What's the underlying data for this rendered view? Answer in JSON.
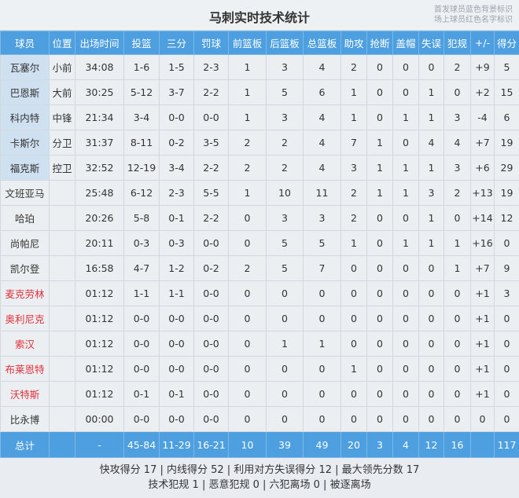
{
  "title": "马刺实时技术统计",
  "legend": [
    "首发球员蓝色背景标识",
    "场上球员红色名字标识"
  ],
  "colors": {
    "header": "#4d9fe0",
    "starter_bg": "#cfe0f0",
    "on_court_name": "#e0313b"
  },
  "headers": [
    "球员",
    "位置",
    "出场时间",
    "投篮",
    "三分",
    "罚球",
    "前篮板",
    "后篮板",
    "总篮板",
    "助攻",
    "抢断",
    "盖帽",
    "失误",
    "犯规",
    "+/-",
    "得分"
  ],
  "starters": [
    [
      "瓦塞尔",
      "小前",
      "34:08",
      "1-6",
      "1-5",
      "2-3",
      "1",
      "3",
      "4",
      "2",
      "0",
      "0",
      "0",
      "2",
      "+9",
      "5"
    ],
    [
      "巴恩斯",
      "大前",
      "30:25",
      "5-12",
      "3-7",
      "2-2",
      "1",
      "5",
      "6",
      "1",
      "0",
      "0",
      "1",
      "0",
      "+2",
      "15"
    ],
    [
      "科内特",
      "中锋",
      "21:34",
      "3-4",
      "0-0",
      "0-0",
      "1",
      "3",
      "4",
      "1",
      "0",
      "1",
      "1",
      "3",
      "-4",
      "6"
    ],
    [
      "卡斯尔",
      "分卫",
      "31:37",
      "8-11",
      "0-2",
      "3-5",
      "2",
      "2",
      "4",
      "7",
      "1",
      "0",
      "4",
      "4",
      "+7",
      "19"
    ],
    [
      "福克斯",
      "控卫",
      "32:52",
      "12-19",
      "3-4",
      "2-2",
      "2",
      "2",
      "4",
      "3",
      "1",
      "1",
      "1",
      "3",
      "+6",
      "29"
    ]
  ],
  "bench": [
    {
      "on_court": false,
      "cells": [
        "文班亚马",
        "",
        "25:48",
        "6-12",
        "2-3",
        "5-5",
        "1",
        "10",
        "11",
        "2",
        "1",
        "1",
        "3",
        "2",
        "+13",
        "19"
      ]
    },
    {
      "on_court": false,
      "cells": [
        "哈珀",
        "",
        "20:26",
        "5-8",
        "0-1",
        "2-2",
        "0",
        "3",
        "3",
        "2",
        "0",
        "0",
        "1",
        "0",
        "+14",
        "12"
      ]
    },
    {
      "on_court": false,
      "cells": [
        "尚帕尼",
        "",
        "20:11",
        "0-3",
        "0-3",
        "0-0",
        "0",
        "5",
        "5",
        "1",
        "0",
        "1",
        "1",
        "1",
        "+16",
        "0"
      ]
    },
    {
      "on_court": false,
      "cells": [
        "凯尔登",
        "",
        "16:58",
        "4-7",
        "1-2",
        "0-2",
        "2",
        "5",
        "7",
        "0",
        "0",
        "0",
        "0",
        "1",
        "+7",
        "9"
      ]
    },
    {
      "on_court": true,
      "cells": [
        "麦克劳林",
        "",
        "01:12",
        "1-1",
        "1-1",
        "0-0",
        "0",
        "0",
        "0",
        "0",
        "0",
        "0",
        "0",
        "0",
        "+1",
        "3"
      ]
    },
    {
      "on_court": true,
      "cells": [
        "奥利尼克",
        "",
        "01:12",
        "0-0",
        "0-0",
        "0-0",
        "0",
        "0",
        "0",
        "0",
        "0",
        "0",
        "0",
        "0",
        "+1",
        "0"
      ]
    },
    {
      "on_court": true,
      "cells": [
        "索汉",
        "",
        "01:12",
        "0-0",
        "0-0",
        "0-0",
        "0",
        "1",
        "1",
        "0",
        "0",
        "0",
        "0",
        "0",
        "+1",
        "0"
      ]
    },
    {
      "on_court": true,
      "cells": [
        "布莱恩特",
        "",
        "01:12",
        "0-0",
        "0-0",
        "0-0",
        "0",
        "0",
        "0",
        "1",
        "0",
        "0",
        "0",
        "0",
        "+1",
        "0"
      ]
    },
    {
      "on_court": true,
      "cells": [
        "沃特斯",
        "",
        "01:12",
        "0-1",
        "0-1",
        "0-0",
        "0",
        "0",
        "0",
        "0",
        "0",
        "0",
        "0",
        "0",
        "+1",
        "0"
      ]
    },
    {
      "on_court": false,
      "cells": [
        "比永博",
        "",
        "00:00",
        "0-0",
        "0-0",
        "0-0",
        "0",
        "0",
        "0",
        "0",
        "0",
        "0",
        "0",
        "0",
        "0",
        "0"
      ]
    }
  ],
  "total": [
    "总计",
    "",
    "-",
    "45-84",
    "11-29",
    "16-21",
    "10",
    "39",
    "49",
    "20",
    "3",
    "4",
    "12",
    "16",
    "",
    "117"
  ],
  "footer": [
    "快攻得分 17 | 内线得分 52 | 利用对方失误得分 12 | 最大领先分数 17",
    "技术犯规 1 | 恶意犯规 0 | 六犯离场 0 | 被逐离场"
  ]
}
